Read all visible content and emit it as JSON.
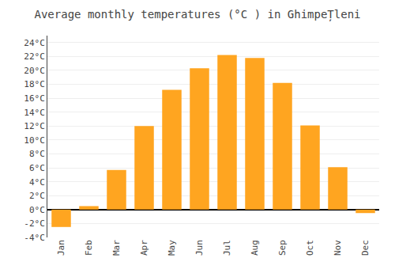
{
  "chart_data": {
    "type": "bar",
    "title": "Average monthly temperatures (°C ) in GhimpeȚleni",
    "categories": [
      "Jan",
      "Feb",
      "Mar",
      "Apr",
      "May",
      "Jun",
      "Jul",
      "Aug",
      "Sep",
      "Oct",
      "Nov",
      "Dec"
    ],
    "values": [
      -2.5,
      0.5,
      5.7,
      12.0,
      17.2,
      20.3,
      22.2,
      21.8,
      18.2,
      12.1,
      6.1,
      -0.5
    ],
    "color": "#FFA520",
    "ylim": [
      -4,
      25
    ],
    "yticks": [
      {
        "value": -4,
        "label": "-4°C"
      },
      {
        "value": -2,
        "label": "-2°C"
      },
      {
        "value": 0,
        "label": "0°C"
      },
      {
        "value": 2,
        "label": "2°C"
      },
      {
        "value": 4,
        "label": "4°C"
      },
      {
        "value": 6,
        "label": "6°C"
      },
      {
        "value": 8,
        "label": "8°C"
      },
      {
        "value": 10,
        "label": "10°C"
      },
      {
        "value": 12,
        "label": "12°C"
      },
      {
        "value": 14,
        "label": "14°C"
      },
      {
        "value": 16,
        "label": "16°C"
      },
      {
        "value": 18,
        "label": "18°C"
      },
      {
        "value": 20,
        "label": "20°C"
      },
      {
        "value": 22,
        "label": "22°C"
      },
      {
        "value": 24,
        "label": "24°C"
      }
    ],
    "grid": true
  }
}
